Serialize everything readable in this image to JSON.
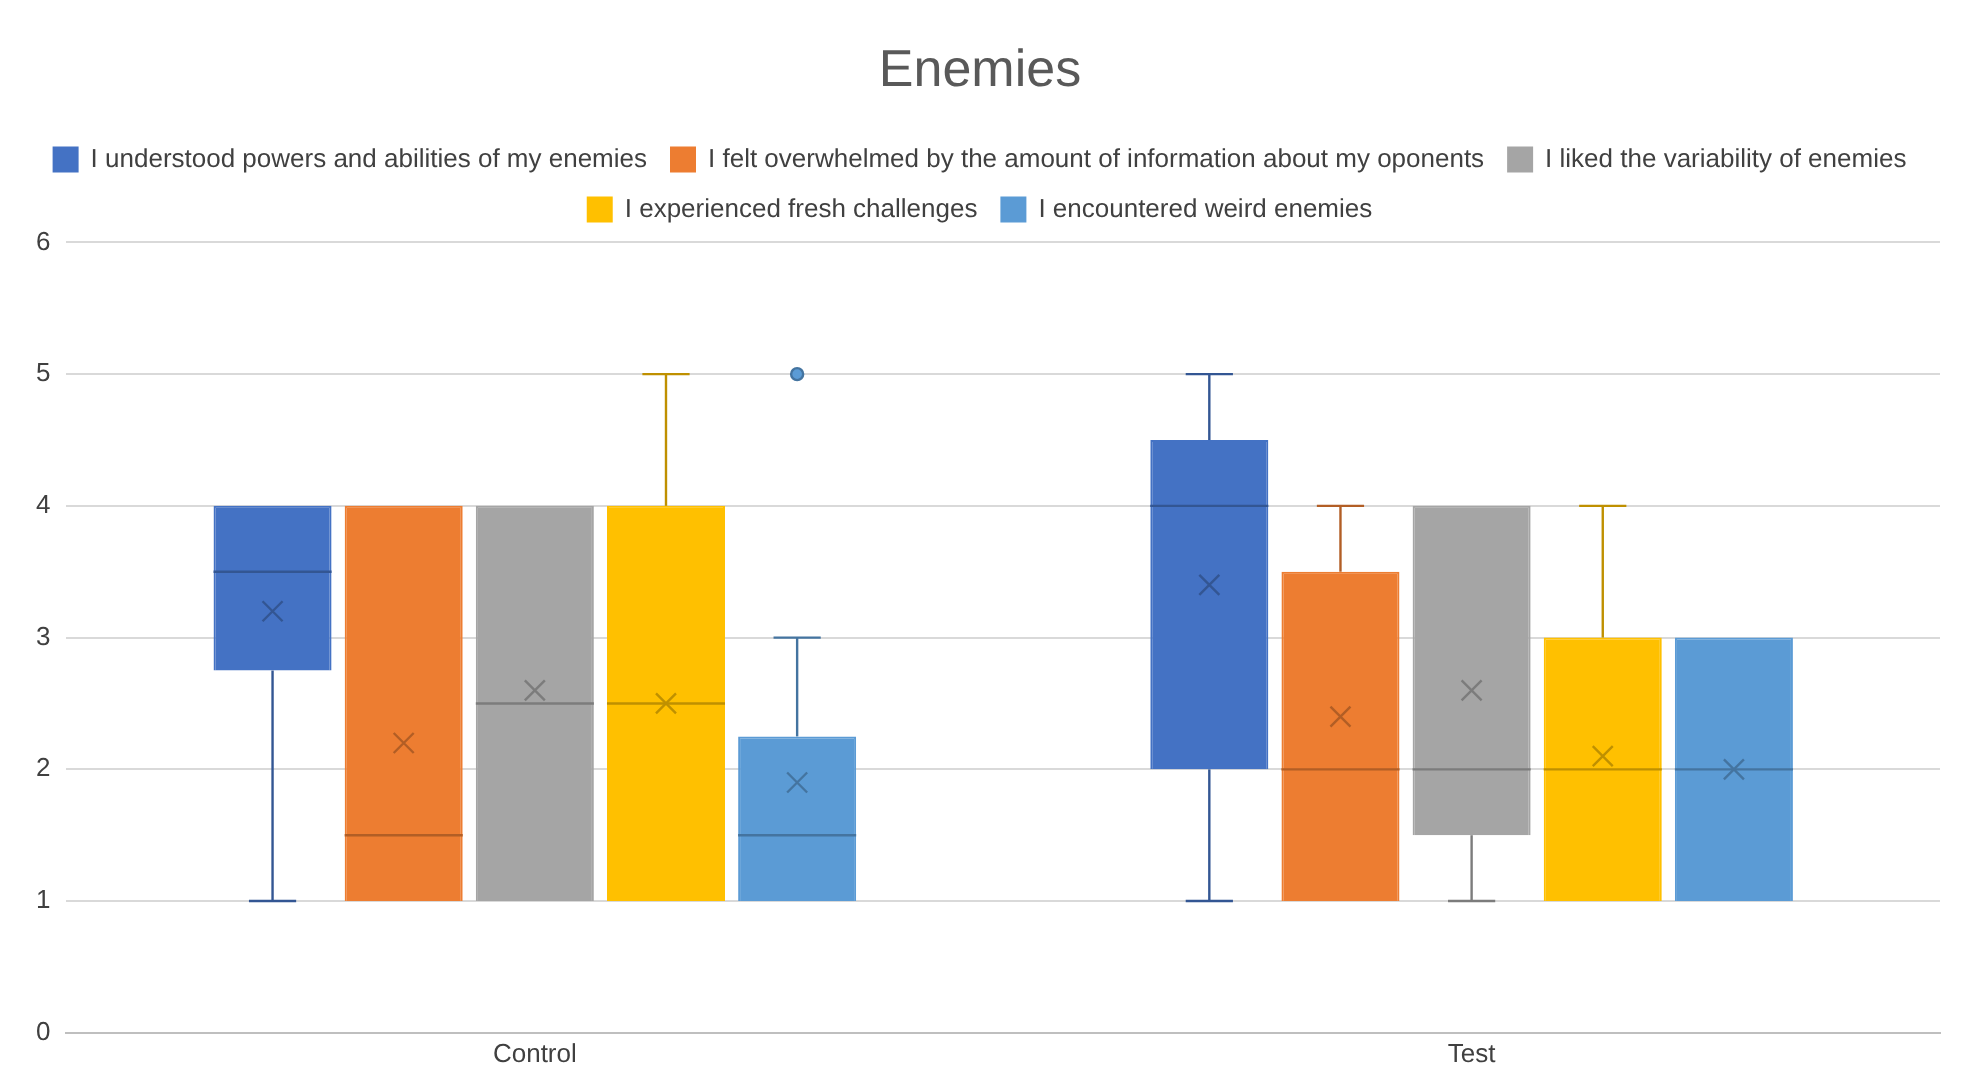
{
  "chart_data": {
    "type": "box",
    "title": "Enemies",
    "categories": [
      "Control",
      "Test"
    ],
    "series": [
      {
        "name": "I understood powers and abilities of my enemies",
        "color": "#4472c4",
        "boxes": [
          {
            "low": 1,
            "q1": 2.75,
            "median": 3.5,
            "q3": 4,
            "high": 4,
            "mean": 3.2
          },
          {
            "low": 1,
            "q1": 2,
            "median": 4,
            "q3": 4.5,
            "high": 5,
            "mean": 3.4
          }
        ]
      },
      {
        "name": "I felt overwhelmed by the amount of information about my oponents",
        "color": "#ed7d31",
        "boxes": [
          {
            "low": 1,
            "q1": 1,
            "median": 1.5,
            "q3": 4,
            "high": 4,
            "mean": 2.2
          },
          {
            "low": 1,
            "q1": 1,
            "median": 2,
            "q3": 3.5,
            "high": 4,
            "mean": 2.4
          }
        ]
      },
      {
        "name": "I liked the variability of enemies",
        "color": "#a5a5a5",
        "boxes": [
          {
            "low": 1,
            "q1": 1,
            "median": 2.5,
            "q3": 4,
            "high": 4,
            "mean": 2.6
          },
          {
            "low": 1,
            "q1": 1.5,
            "median": 2,
            "q3": 4,
            "high": 4,
            "mean": 2.6
          }
        ]
      },
      {
        "name": "I experienced fresh challenges",
        "color": "#ffc000",
        "boxes": [
          {
            "low": 1,
            "q1": 1,
            "median": 2.5,
            "q3": 4,
            "high": 5,
            "mean": 2.5
          },
          {
            "low": 1,
            "q1": 1,
            "median": 2,
            "q3": 3,
            "high": 4,
            "mean": 2.1
          }
        ]
      },
      {
        "name": "I encountered weird enemies",
        "color": "#5b9bd5",
        "boxes": [
          {
            "low": 1,
            "q1": 1,
            "median": 1.5,
            "q3": 2.25,
            "high": 3,
            "mean": 1.9,
            "outliers": [
              5
            ]
          },
          {
            "low": 1,
            "q1": 1,
            "median": 2,
            "q3": 3,
            "high": 3,
            "mean": 2
          }
        ]
      }
    ],
    "ylim": [
      0,
      6
    ],
    "yticks": [
      0,
      1,
      2,
      3,
      4,
      5,
      6
    ],
    "grid": "y",
    "legend": "top",
    "marker": "cross"
  }
}
